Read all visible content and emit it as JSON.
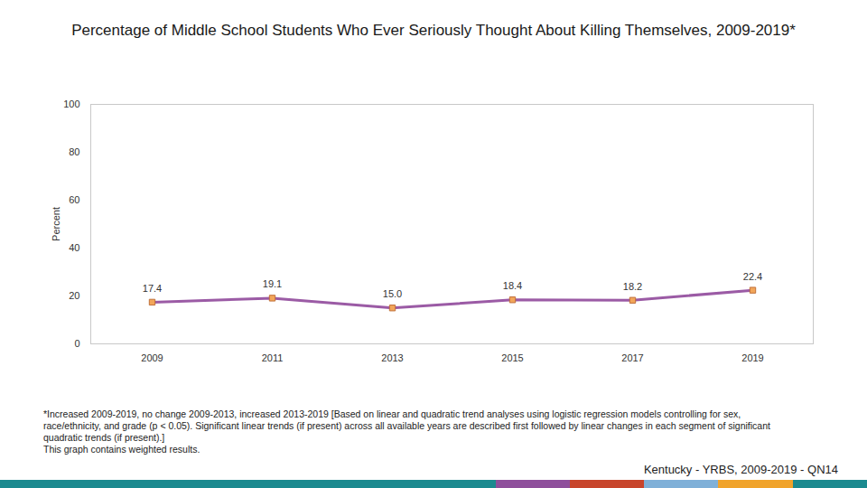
{
  "chart_data": {
    "type": "line",
    "title": "Percentage of Middle School Students Who Ever Seriously Thought About Killing Themselves, 2009-2019*",
    "categories": [
      "2009",
      "2011",
      "2013",
      "2015",
      "2017",
      "2019"
    ],
    "values": [
      17.4,
      19.1,
      15.0,
      18.4,
      18.2,
      22.4
    ],
    "value_labels": [
      "17.4",
      "19.1",
      "15.0",
      "18.4",
      "18.2",
      "22.4"
    ],
    "y_label": "Percent",
    "ylim": [
      0,
      100
    ],
    "yticks": [
      0,
      20,
      40,
      60,
      80,
      100
    ],
    "color": "#9b5ba5",
    "marker": "square",
    "data_labels": true,
    "grid": false,
    "notes": [
      "*Increased 2009-2019, no change 2009-2013, increased 2013-2019 [Based on linear and quadratic trend analyses using logistic regression models controlling for sex, race/ethnicity, and grade (p < 0.05). Significant linear trends (if present) across all available years are described first followed by linear changes in each segment of significant quadratic trends (if present).]",
      "This graph contains weighted results."
    ],
    "source": "Kentucky - YRBS, 2009-2019 - QN14"
  }
}
